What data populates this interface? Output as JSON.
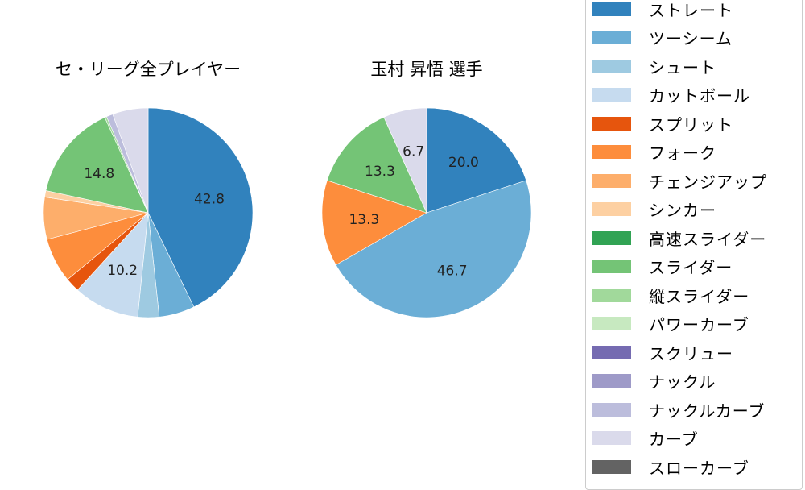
{
  "chart_data": [
    {
      "type": "pie",
      "title": "セ・リーグ全プレイヤー",
      "categories": [
        "ストレート",
        "ツーシーム",
        "シュート",
        "カットボール",
        "スプリット",
        "フォーク",
        "チェンジアップ",
        "シンカー",
        "スライダー",
        "縦スライダー",
        "ナックルカーブ",
        "カーブ"
      ],
      "values": [
        42.8,
        5.5,
        3.3,
        10.2,
        2.2,
        6.9,
        6.5,
        1.0,
        14.8,
        0.3,
        1.0,
        5.5
      ],
      "labels_shown": {
        "ストレート": "42.8",
        "カットボール": "10.2",
        "スライダー": "14.8"
      },
      "start_angle": 90,
      "direction": "clockwise"
    },
    {
      "type": "pie",
      "title": "玉村 昇悟  選手",
      "categories": [
        "ストレート",
        "ツーシーム",
        "フォーク",
        "スライダー",
        "カーブ"
      ],
      "values": [
        20.0,
        46.7,
        13.3,
        13.3,
        6.7
      ],
      "labels_shown": {
        "ストレート": "20.0",
        "ツーシーム": "46.7",
        "フォーク": "13.3",
        "スライダー": "13.3",
        "カーブ": "6.7"
      },
      "start_angle": 90,
      "direction": "clockwise"
    }
  ],
  "titles": {
    "left": "セ・リーグ全プレイヤー",
    "right": "玉村 昇悟  選手"
  },
  "legend": [
    {
      "label": "ストレート",
      "color": "#3182bd"
    },
    {
      "label": "ツーシーム",
      "color": "#6baed6"
    },
    {
      "label": "シュート",
      "color": "#9ecae1"
    },
    {
      "label": "カットボール",
      "color": "#c6dbef"
    },
    {
      "label": "スプリット",
      "color": "#e6550d"
    },
    {
      "label": "フォーク",
      "color": "#fd8d3c"
    },
    {
      "label": "チェンジアップ",
      "color": "#fdae6b"
    },
    {
      "label": "シンカー",
      "color": "#fdd0a2"
    },
    {
      "label": "高速スライダー",
      "color": "#31a354"
    },
    {
      "label": "スライダー",
      "color": "#74c476"
    },
    {
      "label": "縦スライダー",
      "color": "#a1d99b"
    },
    {
      "label": "パワーカーブ",
      "color": "#c7e9c0"
    },
    {
      "label": "スクリュー",
      "color": "#756bb1"
    },
    {
      "label": "ナックル",
      "color": "#9e9ac8"
    },
    {
      "label": "ナックルカーブ",
      "color": "#bcbddc"
    },
    {
      "label": "カーブ",
      "color": "#dadaeb"
    },
    {
      "label": "スローカーブ",
      "color": "#636363"
    }
  ]
}
